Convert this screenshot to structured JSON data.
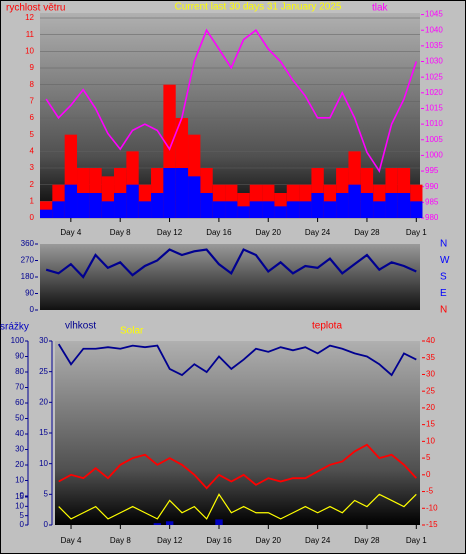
{
  "chart_data": [
    {
      "type": "bar",
      "title": "Current last 30 days 31 January 2025",
      "y_label": "rychlost větru",
      "x": [
        2,
        3,
        4,
        5,
        6,
        7,
        8,
        9,
        10,
        11,
        12,
        13,
        14,
        15,
        16,
        17,
        18,
        19,
        20,
        21,
        22,
        23,
        24,
        25,
        26,
        27,
        28,
        29,
        30,
        31,
        32
      ],
      "xlim": [
        1.5,
        32.3
      ],
      "xticks": [
        {
          "value": 4,
          "label": "Day 4"
        },
        {
          "value": 8,
          "label": "Day 8"
        },
        {
          "value": 12,
          "label": "Day 12"
        },
        {
          "value": 16,
          "label": "Day 16"
        },
        {
          "value": 20,
          "label": "Day 20"
        },
        {
          "value": 24,
          "label": "Day 24"
        },
        {
          "value": 28,
          "label": "Day 28"
        },
        {
          "value": 32,
          "label": "Day 1"
        }
      ],
      "ylim": [
        0,
        12.3
      ],
      "yticks": [
        0,
        1,
        2,
        3,
        4,
        5,
        6,
        7,
        8,
        9,
        10,
        11,
        12
      ],
      "y2lim": [
        980,
        1045.5
      ],
      "y2ticks": [
        980,
        985,
        990,
        995,
        1000,
        1005,
        1010,
        1015,
        1020,
        1025,
        1030,
        1035,
        1040,
        1045
      ],
      "grid": true,
      "series": [
        {
          "color": "#ff0000",
          "values": [
            1,
            2,
            5,
            3,
            3,
            2.5,
            3,
            4,
            2,
            3,
            8,
            6,
            5,
            3,
            2,
            2,
            1.5,
            2,
            2,
            1.5,
            2,
            2,
            3,
            2,
            3,
            4,
            3,
            2,
            3,
            3,
            2
          ]
        },
        {
          "color": "#0000ff",
          "values": [
            0.5,
            1,
            2,
            1.5,
            1.5,
            1,
            1.5,
            2,
            1,
            1.5,
            3,
            3,
            2.5,
            1.5,
            1,
            1,
            0.7,
            1,
            1,
            0.7,
            1,
            1,
            1.5,
            1,
            1.5,
            2,
            1.5,
            1,
            1.5,
            1.5,
            1
          ]
        },
        {
          "name": "tlak",
          "type": "line",
          "axis": "y2",
          "color": "#ff00ff",
          "values": [
            1018,
            1012,
            1016,
            1021,
            1015,
            1007,
            1002,
            1008,
            1010,
            1008,
            1002,
            1012,
            1030,
            1040,
            1034,
            1028,
            1037,
            1040,
            1034,
            1030,
            1024,
            1019,
            1012,
            1012,
            1020,
            1012,
            1001,
            995,
            1010,
            1018,
            1030
          ]
        }
      ]
    },
    {
      "type": "line",
      "x": [
        2,
        3,
        4,
        5,
        6,
        7,
        8,
        9,
        10,
        11,
        12,
        13,
        14,
        15,
        16,
        17,
        18,
        19,
        20,
        21,
        22,
        23,
        24,
        25,
        26,
        27,
        28,
        29,
        30,
        31,
        32
      ],
      "xlim": [
        1.5,
        32.3
      ],
      "ylim": [
        0,
        360
      ],
      "yticks": [
        0,
        90,
        180,
        270,
        360
      ],
      "y2ticks": [
        {
          "value": 0,
          "label": "N"
        },
        {
          "value": 90,
          "label": "E"
        },
        {
          "value": 180,
          "label": "S"
        },
        {
          "value": 270,
          "label": "W"
        },
        {
          "value": 360,
          "label": "N"
        }
      ],
      "y2tick_colors": [
        "#ff0000",
        "#0000ff",
        "#0000ff",
        "#0000ff",
        "#0000ff"
      ],
      "series": [
        {
          "color": "#000090",
          "values": [
            220,
            200,
            250,
            180,
            300,
            230,
            260,
            190,
            240,
            270,
            330,
            300,
            320,
            330,
            250,
            200,
            330,
            300,
            210,
            260,
            200,
            240,
            230,
            280,
            200,
            250,
            300,
            220,
            260,
            240,
            210
          ]
        }
      ]
    },
    {
      "type": "line",
      "x": [
        3,
        4,
        5,
        6,
        7,
        8,
        9,
        10,
        11,
        12,
        13,
        14,
        15,
        16,
        17,
        18,
        19,
        20,
        21,
        22,
        23,
        24,
        25,
        26,
        27,
        28,
        29,
        30,
        31,
        32
      ],
      "xlim": [
        2.7,
        32.3
      ],
      "xticks": [
        {
          "value": 4,
          "label": "Day 4"
        },
        {
          "value": 8,
          "label": "Day 8"
        },
        {
          "value": 12,
          "label": "Day 12"
        },
        {
          "value": 16,
          "label": "Day 16"
        },
        {
          "value": 20,
          "label": "Day 20"
        },
        {
          "value": 24,
          "label": "Day 24"
        },
        {
          "value": 28,
          "label": "Day 28"
        },
        {
          "value": 32,
          "label": "Day 1"
        }
      ],
      "axes": {
        "y": {
          "lim": [
            0,
            100
          ],
          "ticks": [
            0,
            10,
            20,
            30,
            40,
            50,
            60,
            70,
            80,
            90,
            100
          ]
        },
        "y2": {
          "lim": [
            -15,
            40
          ],
          "ticks": [
            -15,
            -10,
            -5,
            0,
            5,
            10,
            15,
            20,
            25,
            30,
            35,
            40
          ]
        },
        "y3": {
          "lim": [
            0,
            15
          ],
          "ticks": [
            0,
            5,
            10,
            15
          ]
        },
        "y4": {
          "lim": [
            0,
            30
          ],
          "ticks": [
            0,
            5,
            10,
            15,
            20,
            25,
            30
          ]
        }
      },
      "series": [
        {
          "name": "srážky",
          "type": "bar",
          "axis": "y3",
          "color": "#0000c0",
          "values": [
            0,
            0,
            0,
            0,
            0,
            0,
            0,
            0,
            1,
            2,
            0,
            0,
            0,
            3,
            0,
            0,
            0,
            0,
            0,
            0,
            0,
            0,
            0,
            0,
            0,
            0,
            0,
            0,
            0,
            0
          ]
        },
        {
          "name": "vlhkost",
          "axis": "y",
          "color": "#000090",
          "values": [
            98,
            85,
            95,
            95,
            96,
            95,
            97,
            96,
            97,
            82,
            78,
            85,
            80,
            90,
            82,
            88,
            95,
            93,
            96,
            94,
            96,
            92,
            97,
            95,
            92,
            90,
            85,
            78,
            92,
            88
          ]
        },
        {
          "name": "Solar",
          "axis": "y4",
          "color": "#ffff00",
          "values": [
            3,
            1,
            2,
            3,
            1,
            2,
            3,
            2,
            1,
            4,
            2,
            3,
            1,
            5,
            2,
            3,
            2,
            2,
            1,
            2,
            3,
            2,
            3,
            2,
            4,
            3,
            5,
            4,
            3,
            5
          ]
        },
        {
          "name": "teplota",
          "axis": "y2",
          "color": "#ff0000",
          "values": [
            -2,
            0,
            -1,
            2,
            -1,
            3,
            5,
            6,
            3,
            5,
            3,
            0,
            -4,
            0,
            -2,
            0,
            -3,
            -1,
            -2,
            -1,
            -1,
            1,
            3,
            4,
            7,
            9,
            5,
            6,
            3,
            -1
          ]
        }
      ]
    }
  ]
}
